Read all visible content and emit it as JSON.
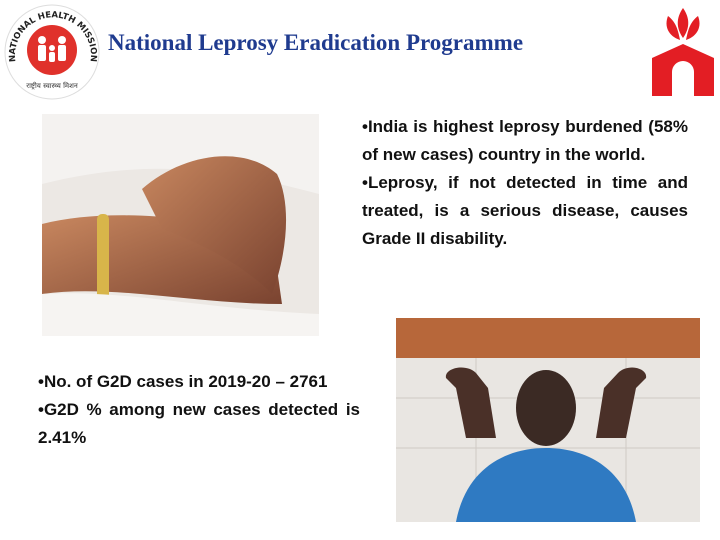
{
  "header": {
    "title": "National Leprosy Eradication Programme",
    "logo_left": {
      "ring_text": "NATIONAL HEALTH MISSION",
      "hindi_text": "राष्ट्रीय स्वास्थ्य मिशन"
    }
  },
  "top_bullets": [
    "•India is highest leprosy burdened (58% of new cases) country in the world.",
    "•Leprosy, if not detected in time and treated, is a serious disease, causes Grade II disability."
  ],
  "bottom_bullets": [
    "•No. of G2D cases in 2019-20 – 2761",
    "•G2D % among new cases detected is 2.41%"
  ]
}
